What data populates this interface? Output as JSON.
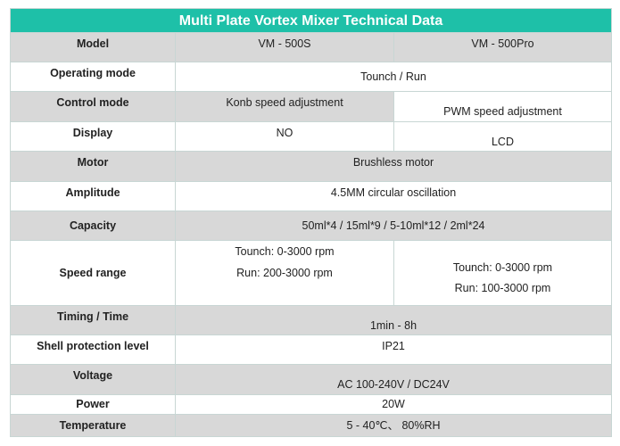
{
  "title": "Multi Plate Vortex Mixer Technical Data",
  "rows": {
    "model": {
      "label": "Model",
      "a": "VM - 500S",
      "b": "VM - 500Pro"
    },
    "operating_mode": {
      "label": "Operating mode",
      "value": "Tounch / Run"
    },
    "control_mode": {
      "label": "Control mode",
      "a": "Konb speed adjustment",
      "b": "PWM speed adjustment"
    },
    "display": {
      "label": "Display",
      "a": "NO",
      "b": "LCD"
    },
    "motor": {
      "label": "Motor",
      "value": "Brushless motor"
    },
    "amplitude": {
      "label": "Amplitude",
      "value": "4.5MM circular oscillation"
    },
    "capacity": {
      "label": "Capacity",
      "value": "50ml*4 / 15ml*9 / 5-10ml*12 / 2ml*24"
    },
    "speed_range": {
      "label": "Speed range",
      "a1": "Tounch: 0-3000 rpm",
      "a2": "Run: 200-3000 rpm",
      "b1": "Tounch: 0-3000 rpm",
      "b2": "Run: 100-3000 rpm"
    },
    "timing": {
      "label": "Timing / Time",
      "value": "1min - 8h"
    },
    "shell": {
      "label": "Shell protection level",
      "value": "IP21"
    },
    "voltage": {
      "label": "Voltage",
      "value": "AC 100-240V / DC24V"
    },
    "power": {
      "label": "Power",
      "value": "20W"
    },
    "temperature": {
      "label": "Temperature",
      "value": "5 - 40℃、 80%RH"
    }
  }
}
